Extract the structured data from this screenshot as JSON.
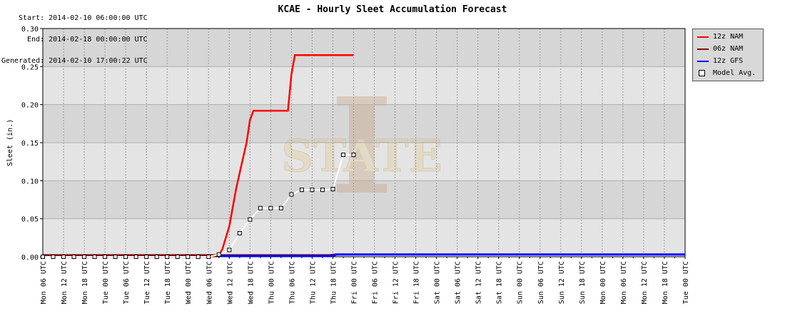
{
  "meta": {
    "start": "Start: 2014-02-10 06:00:00 UTC",
    "end": "End: 2014-02-18 00:00:00 UTC",
    "generated": "Generated: 2014-02-10 17:00:22 UTC"
  },
  "chart_data": {
    "type": "line",
    "title": "KCAE - Hourly Sleet Accumulation Forecast",
    "ylabel": "Sleet (in.)",
    "xlabel": "",
    "ylim": [
      0,
      0.3
    ],
    "y_ticks": [
      "0.00",
      "0.05",
      "0.10",
      "0.15",
      "0.20",
      "0.25",
      "0.30"
    ],
    "x_tick_labels": [
      "Mon 06 UTC",
      "Mon 12 UTC",
      "Mon 18 UTC",
      "Tue 00 UTC",
      "Tue 06 UTC",
      "Tue 12 UTC",
      "Tue 18 UTC",
      "Wed 00 UTC",
      "Wed 06 UTC",
      "Wed 12 UTC",
      "Wed 18 UTC",
      "Thu 00 UTC",
      "Thu 06 UTC",
      "Thu 12 UTC",
      "Thu 18 UTC",
      "Fri 00 UTC",
      "Fri 06 UTC",
      "Fri 12 UTC",
      "Fri 18 UTC",
      "Sat 00 UTC",
      "Sat 06 UTC",
      "Sat 12 UTC",
      "Sat 18 UTC",
      "Sun 00 UTC",
      "Sun 06 UTC",
      "Sun 12 UTC",
      "Sun 18 UTC",
      "Mon 00 UTC",
      "Mon 06 UTC",
      "Mon 12 UTC",
      "Mon 18 UTC",
      "Tue 00 UTC"
    ],
    "grid": true,
    "legend_position": "right",
    "series": [
      {
        "name": "12z NAM",
        "color": "#ff0000",
        "points": [
          [
            "Mon 12 UTC",
            0
          ],
          [
            "Wed 06 UTC",
            0
          ],
          [
            "Wed 09 UTC",
            0.002
          ],
          [
            "Wed 10 UTC",
            0.01
          ],
          [
            "Wed 12 UTC",
            0.04
          ],
          [
            "Wed 14 UTC",
            0.09
          ],
          [
            "Wed 16 UTC",
            0.13
          ],
          [
            "Wed 17 UTC",
            0.15
          ],
          [
            "Wed 18 UTC",
            0.18
          ],
          [
            "Wed 19 UTC",
            0.192
          ],
          [
            "Thu 05 UTC",
            0.192
          ],
          [
            "Thu 06 UTC",
            0.24
          ],
          [
            "Thu 07 UTC",
            0.265
          ],
          [
            "Fri 00 UTC",
            0.265
          ]
        ]
      },
      {
        "name": "06z NAM",
        "color": "#880000",
        "points": [
          [
            "Mon 06 UTC",
            0.002
          ],
          [
            "Mon 12 UTC",
            0.002
          ],
          [
            "Wed 09 UTC",
            0.002
          ],
          [
            "Thu 17 UTC",
            0.002
          ],
          [
            "Thu 19 UTC",
            0.003
          ]
        ]
      },
      {
        "name": "12z GFS",
        "color": "#0000ff",
        "points": [
          [
            "Wed 09 UTC",
            0.001
          ],
          [
            "Thu 18 UTC",
            0.001
          ],
          [
            "Thu 19 UTC",
            0.003
          ],
          [
            "Tue 00 UTC",
            0.003
          ]
        ]
      },
      {
        "name": "Model Avg.",
        "color": "#ffffff",
        "points": [
          [
            "Mon 06 UTC",
            0
          ],
          [
            "Mon 09 UTC",
            0
          ],
          [
            "Mon 12 UTC",
            0
          ],
          [
            "Mon 15 UTC",
            0
          ],
          [
            "Mon 18 UTC",
            0
          ],
          [
            "Mon 21 UTC",
            0
          ],
          [
            "Tue 00 UTC",
            0
          ],
          [
            "Tue 03 UTC",
            0
          ],
          [
            "Tue 06 UTC",
            0
          ],
          [
            "Tue 09 UTC",
            0
          ],
          [
            "Tue 12 UTC",
            0
          ],
          [
            "Tue 15 UTC",
            0
          ],
          [
            "Tue 18 UTC",
            0
          ],
          [
            "Tue 21 UTC",
            0
          ],
          [
            "Wed 00 UTC",
            0
          ],
          [
            "Wed 03 UTC",
            0
          ],
          [
            "Wed 06 UTC",
            0
          ],
          [
            "Wed 09 UTC",
            0.003
          ],
          [
            "Wed 12 UTC",
            0.009
          ],
          [
            "Wed 15 UTC",
            0.031
          ],
          [
            "Wed 18 UTC",
            0.049
          ],
          [
            "Wed 21 UTC",
            0.064
          ],
          [
            "Thu 00 UTC",
            0.064
          ],
          [
            "Thu 03 UTC",
            0.064
          ],
          [
            "Thu 06 UTC",
            0.082
          ],
          [
            "Thu 09 UTC",
            0.088
          ],
          [
            "Thu 12 UTC",
            0.088
          ],
          [
            "Thu 15 UTC",
            0.088
          ],
          [
            "Thu 18 UTC",
            0.089
          ],
          [
            "Thu 21 UTC",
            0.134
          ],
          [
            "Fri 00 UTC",
            0.134
          ]
        ]
      }
    ]
  }
}
